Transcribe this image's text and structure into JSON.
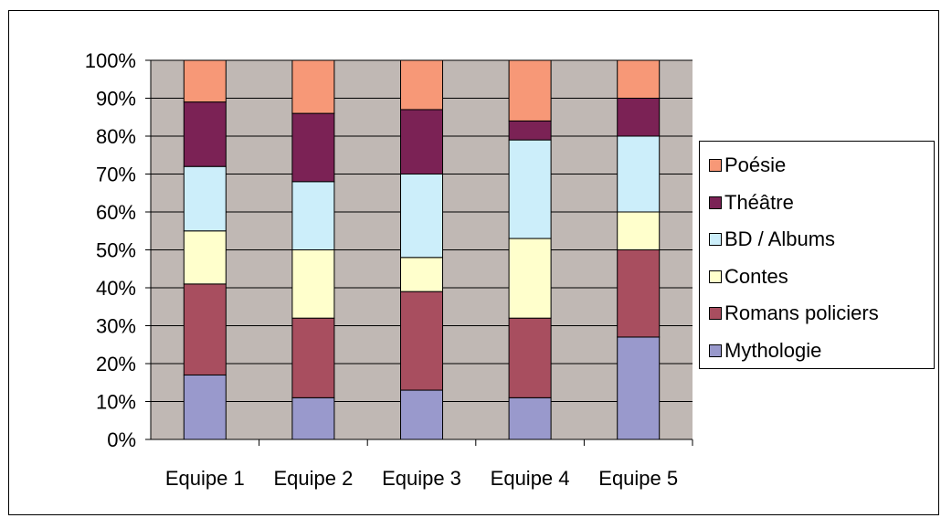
{
  "chart_data": {
    "type": "bar",
    "stacked": true,
    "percent_stacked": true,
    "categories": [
      "Equipe 1",
      "Equipe 2",
      "Equipe 3",
      "Equipe 4",
      "Equipe 5"
    ],
    "series": [
      {
        "name": "Mythologie",
        "color": "#9999cc",
        "values": [
          17,
          11,
          13,
          11,
          27
        ]
      },
      {
        "name": "Romans policiers",
        "color": "#a84e5f",
        "values": [
          24,
          21,
          26,
          21,
          23
        ]
      },
      {
        "name": "Contes",
        "color": "#ffffcc",
        "values": [
          14,
          18,
          9,
          21,
          10
        ]
      },
      {
        "name": "BD / Albums",
        "color": "#cceefa",
        "values": [
          17,
          18,
          22,
          26,
          20
        ]
      },
      {
        "name": "Théâtre",
        "color": "#7b2255",
        "values": [
          17,
          18,
          17,
          5,
          10
        ]
      },
      {
        "name": "Poésie",
        "color": "#f79877",
        "values": [
          11,
          14,
          13,
          16,
          10
        ]
      }
    ],
    "y_ticks": [
      "0%",
      "10%",
      "20%",
      "30%",
      "40%",
      "50%",
      "60%",
      "70%",
      "80%",
      "90%",
      "100%"
    ],
    "ylim": [
      0,
      100
    ],
    "title": "",
    "xlabel": "",
    "ylabel": "",
    "grid": true,
    "legend_position": "right",
    "plot_background": "#c0b8b4"
  },
  "legend": {
    "items": [
      {
        "label": "Poésie",
        "color": "#f79877"
      },
      {
        "label": "Théâtre",
        "color": "#7b2255"
      },
      {
        "label": "BD / Albums",
        "color": "#cceefa"
      },
      {
        "label": "Contes",
        "color": "#ffffcc"
      },
      {
        "label": "Romans policiers",
        "color": "#a84e5f"
      },
      {
        "label": "Mythologie",
        "color": "#9999cc"
      }
    ]
  }
}
